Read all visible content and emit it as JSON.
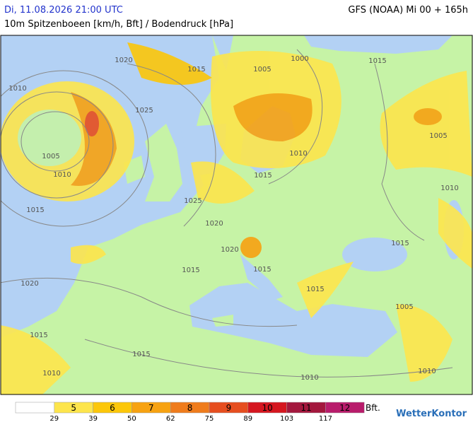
{
  "header": {
    "left": "Di, 11.08.2026 21:00 UTC",
    "right": "GFS (NOAA) Mi 00 + 165h",
    "subtitle": "10m Spitzenboeen [km/h, Bft] / Bodendruck [hPa]"
  },
  "isobar_labels": [
    "1020",
    "1015",
    "1010",
    "1025",
    "1005",
    "1010",
    "1015",
    "1000",
    "1005",
    "1015",
    "1010",
    "1015",
    "1025",
    "1020",
    "1020",
    "1015",
    "1015",
    "1020",
    "1015",
    "1015",
    "1005",
    "1010",
    "1005",
    "1015",
    "1015",
    "1010",
    "1010",
    "1010"
  ],
  "legend": {
    "bft": [
      "5",
      "6",
      "7",
      "8",
      "9",
      "10",
      "11",
      "12"
    ],
    "kmh": [
      "29",
      "39",
      "50",
      "62",
      "75",
      "89",
      "103",
      "117"
    ],
    "colors": [
      "#ffffff",
      "#fde54c",
      "#fcc70a",
      "#f7a211",
      "#ef7c1c",
      "#e64e1f",
      "#d5161f",
      "#a3173d",
      "#b81c6b"
    ],
    "unit": "Bft."
  },
  "brand": "WetterKontor"
}
